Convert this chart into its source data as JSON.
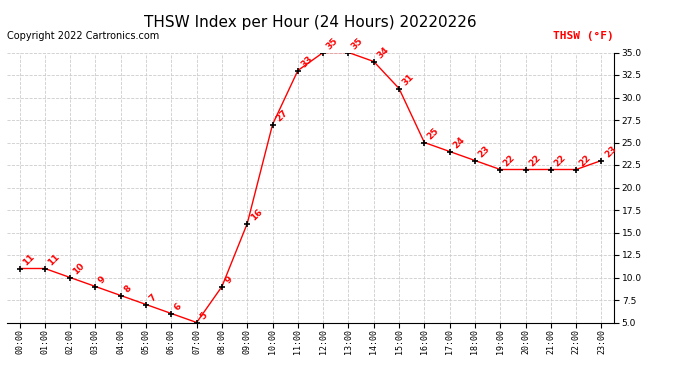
{
  "title": "THSW Index per Hour (24 Hours) 20220226",
  "copyright": "Copyright 2022 Cartronics.com",
  "legend_label": "THSW (°F)",
  "hours": [
    0,
    1,
    2,
    3,
    4,
    5,
    6,
    7,
    8,
    9,
    10,
    11,
    12,
    13,
    14,
    15,
    16,
    17,
    18,
    19,
    20,
    21,
    22,
    23
  ],
  "values": [
    11,
    11,
    10,
    9,
    8,
    7,
    6,
    5,
    9,
    16,
    27,
    33,
    35,
    35,
    34,
    31,
    25,
    24,
    23,
    22,
    22,
    22,
    22,
    23
  ],
  "line_color": "red",
  "marker_color": "black",
  "label_color": "red",
  "grid_color": "#cccccc",
  "background_color": "white",
  "ylim_min": 5.0,
  "ylim_max": 35.0,
  "ytick_step": 2.5,
  "title_fontsize": 11,
  "copyright_fontsize": 7,
  "label_fontsize": 6.5,
  "legend_fontsize": 8
}
